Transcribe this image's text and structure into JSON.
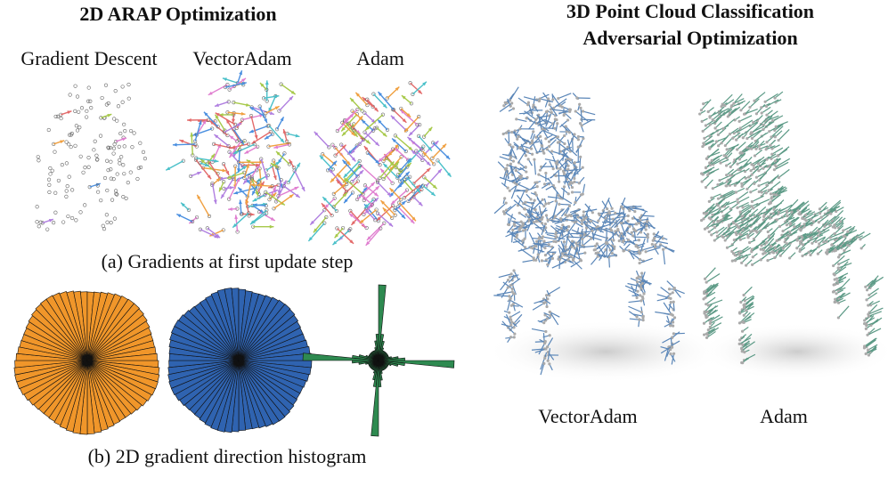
{
  "left_panel": {
    "title": "2D ARAP Optimization",
    "columns": [
      "Gradient Descent",
      "VectorAdam",
      "Adam"
    ],
    "caption_a": "(a) Gradients at first update step",
    "caption_b": "(b) 2D gradient direction histogram"
  },
  "right_panel": {
    "title_lines": [
      "3D Point Cloud Classification",
      "Adversarial Optimization"
    ],
    "labels": [
      "VectorAdam",
      "Adam"
    ]
  }
}
